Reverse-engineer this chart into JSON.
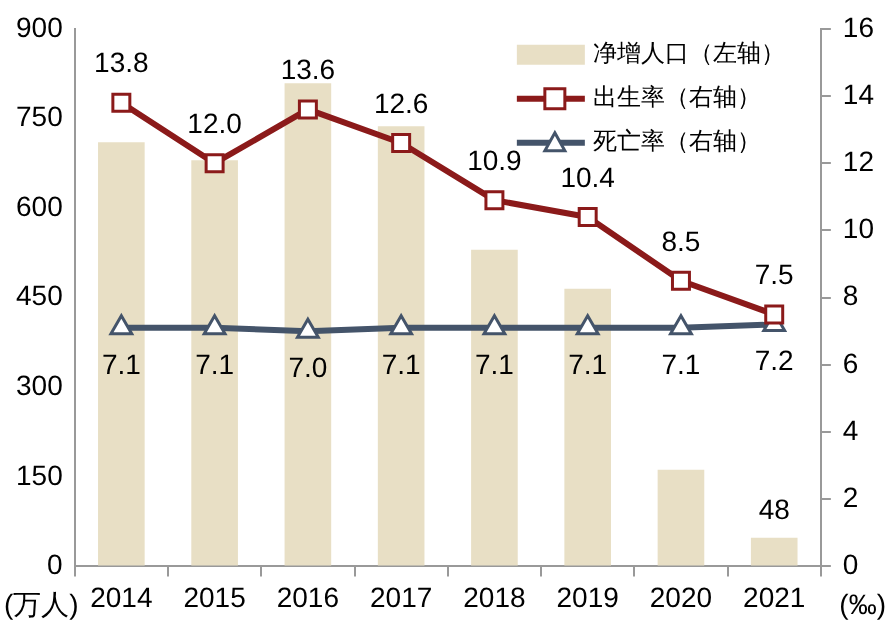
{
  "chart_data": {
    "type": "bar",
    "categories": [
      "2014",
      "2015",
      "2016",
      "2017",
      "2018",
      "2019",
      "2020",
      "2021"
    ],
    "series": [
      {
        "name": "净增人口（左轴）",
        "color": "#e8dfc5",
        "values": [
          710,
          680,
          809,
          737,
          530,
          465,
          162,
          48
        ],
        "value_labels": [
          null,
          null,
          null,
          null,
          null,
          null,
          null,
          "48"
        ]
      },
      {
        "name": "出生率（右轴）",
        "type": "line",
        "axis": "y2",
        "color": "#8b1a1a",
        "marker": "square",
        "values": [
          13.8,
          12.0,
          13.6,
          12.6,
          10.9,
          10.4,
          8.5,
          7.5
        ],
        "value_labels": [
          "13.8",
          "12.0",
          "13.6",
          "12.6",
          "10.9",
          "10.4",
          "8.5",
          "7.5"
        ]
      },
      {
        "name": "死亡率（右轴）",
        "type": "line",
        "axis": "y2",
        "color": "#44546a",
        "marker": "triangle",
        "values": [
          7.1,
          7.1,
          7.0,
          7.1,
          7.1,
          7.1,
          7.1,
          7.2
        ],
        "value_labels": [
          "7.1",
          "7.1",
          "7.0",
          "7.1",
          "7.1",
          "7.1",
          "7.1",
          "7.2"
        ]
      }
    ],
    "ylabel": "(万人)",
    "y2label": "(‰)",
    "ylim": [
      0,
      900
    ],
    "yticks": [
      0,
      150,
      300,
      450,
      600,
      750,
      900
    ],
    "y2lim": [
      0,
      16
    ],
    "y2ticks": [
      0,
      2,
      4,
      6,
      8,
      10,
      12,
      14,
      16
    ],
    "legend": "top right",
    "grid": false
  }
}
